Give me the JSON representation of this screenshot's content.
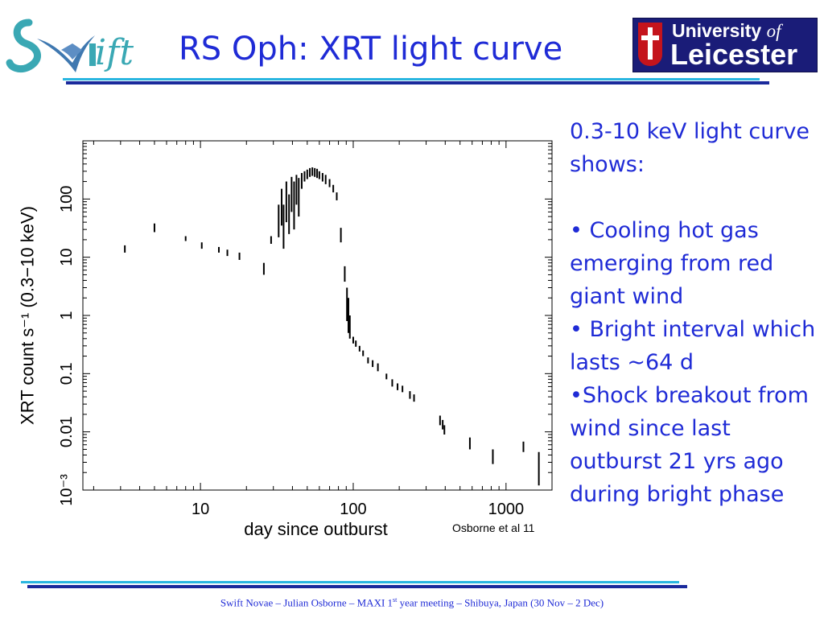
{
  "header": {
    "title": "RS Oph: XRT light curve",
    "swift_logo_text": "Swift",
    "university_logo": {
      "line1_word": "University",
      "line1_of": "of",
      "line2": "Leicester"
    }
  },
  "chart_data": {
    "type": "scatter",
    "title": "",
    "xlabel": "day since outburst",
    "ylabel": "XRT count s⁻¹ (0.3−10 keV)",
    "xscale": "log",
    "yscale": "log",
    "xlim": [
      1.7,
      2000
    ],
    "ylim": [
      0.001,
      1000
    ],
    "x_ticks": [
      {
        "value": 10,
        "label": "10"
      },
      {
        "value": 100,
        "label": "100"
      },
      {
        "value": 1000,
        "label": "1000"
      }
    ],
    "y_ticks": [
      {
        "value": 0.001,
        "label": "10⁻³"
      },
      {
        "value": 0.01,
        "label": "0.01"
      },
      {
        "value": 0.1,
        "label": "0.1"
      },
      {
        "value": 1,
        "label": "1"
      },
      {
        "value": 10,
        "label": "10"
      },
      {
        "value": 100,
        "label": "100"
      }
    ],
    "grid": false,
    "marker_color": "#000000",
    "series": [
      {
        "points": [
          {
            "x": 3.2,
            "y": 14,
            "ylo": 12,
            "yhi": 16
          },
          {
            "x": 5.0,
            "y": 32,
            "ylo": 27,
            "yhi": 38
          },
          {
            "x": 8.0,
            "y": 21,
            "ylo": 19,
            "yhi": 23
          },
          {
            "x": 10.2,
            "y": 16,
            "ylo": 14,
            "yhi": 18
          },
          {
            "x": 13.2,
            "y": 13.5,
            "ylo": 12,
            "yhi": 15
          },
          {
            "x": 15.0,
            "y": 12,
            "ylo": 10.5,
            "yhi": 13.5
          },
          {
            "x": 18.0,
            "y": 10.5,
            "ylo": 9,
            "yhi": 12
          },
          {
            "x": 26.0,
            "y": 6.5,
            "ylo": 5,
            "yhi": 8
          },
          {
            "x": 29.0,
            "y": 20,
            "ylo": 17,
            "yhi": 23
          },
          {
            "x": 32.5,
            "y": 50,
            "ylo": 22,
            "yhi": 80
          },
          {
            "x": 34.0,
            "y": 80,
            "ylo": 35,
            "yhi": 150
          },
          {
            "x": 35.0,
            "y": 40,
            "ylo": 14,
            "yhi": 80
          },
          {
            "x": 36.5,
            "y": 100,
            "ylo": 40,
            "yhi": 200
          },
          {
            "x": 38.0,
            "y": 60,
            "ylo": 25,
            "yhi": 120
          },
          {
            "x": 39.5,
            "y": 150,
            "ylo": 60,
            "yhi": 240
          },
          {
            "x": 41.0,
            "y": 90,
            "ylo": 30,
            "yhi": 200
          },
          {
            "x": 42.5,
            "y": 180,
            "ylo": 80,
            "yhi": 260
          },
          {
            "x": 44.0,
            "y": 120,
            "ylo": 50,
            "yhi": 230
          },
          {
            "x": 46.0,
            "y": 220,
            "ylo": 150,
            "yhi": 280
          },
          {
            "x": 48.0,
            "y": 250,
            "ylo": 200,
            "yhi": 300
          },
          {
            "x": 50.0,
            "y": 270,
            "ylo": 220,
            "yhi": 320
          },
          {
            "x": 52.0,
            "y": 290,
            "ylo": 240,
            "yhi": 340
          },
          {
            "x": 54.0,
            "y": 300,
            "ylo": 250,
            "yhi": 350
          },
          {
            "x": 56.0,
            "y": 290,
            "ylo": 240,
            "yhi": 340
          },
          {
            "x": 58.0,
            "y": 280,
            "ylo": 230,
            "yhi": 330
          },
          {
            "x": 60.0,
            "y": 260,
            "ylo": 220,
            "yhi": 300
          },
          {
            "x": 63.0,
            "y": 240,
            "ylo": 200,
            "yhi": 280
          },
          {
            "x": 66.0,
            "y": 220,
            "ylo": 180,
            "yhi": 260
          },
          {
            "x": 70.0,
            "y": 190,
            "ylo": 160,
            "yhi": 220
          },
          {
            "x": 74.0,
            "y": 150,
            "ylo": 130,
            "yhi": 175
          },
          {
            "x": 78.0,
            "y": 110,
            "ylo": 95,
            "yhi": 130
          },
          {
            "x": 83.0,
            "y": 25,
            "ylo": 18,
            "yhi": 32
          },
          {
            "x": 88.0,
            "y": 5,
            "ylo": 3.8,
            "yhi": 7
          },
          {
            "x": 91.0,
            "y": 1.5,
            "ylo": 0.8,
            "yhi": 3
          },
          {
            "x": 93.0,
            "y": 0.8,
            "ylo": 0.5,
            "yhi": 2
          },
          {
            "x": 95.0,
            "y": 0.6,
            "ylo": 0.4,
            "yhi": 1
          },
          {
            "x": 100.0,
            "y": 0.38,
            "ylo": 0.33,
            "yhi": 0.43
          },
          {
            "x": 104.0,
            "y": 0.33,
            "ylo": 0.29,
            "yhi": 0.37
          },
          {
            "x": 110.0,
            "y": 0.27,
            "ylo": 0.24,
            "yhi": 0.3
          },
          {
            "x": 116.0,
            "y": 0.22,
            "ylo": 0.2,
            "yhi": 0.25
          },
          {
            "x": 125.0,
            "y": 0.17,
            "ylo": 0.15,
            "yhi": 0.19
          },
          {
            "x": 134.0,
            "y": 0.15,
            "ylo": 0.13,
            "yhi": 0.17
          },
          {
            "x": 145.0,
            "y": 0.13,
            "ylo": 0.11,
            "yhi": 0.15
          },
          {
            "x": 165.0,
            "y": 0.09,
            "ylo": 0.08,
            "yhi": 0.1
          },
          {
            "x": 180.0,
            "y": 0.07,
            "ylo": 0.06,
            "yhi": 0.08
          },
          {
            "x": 195.0,
            "y": 0.06,
            "ylo": 0.052,
            "yhi": 0.068
          },
          {
            "x": 210.0,
            "y": 0.055,
            "ylo": 0.048,
            "yhi": 0.062
          },
          {
            "x": 235.0,
            "y": 0.043,
            "ylo": 0.037,
            "yhi": 0.05
          },
          {
            "x": 250.0,
            "y": 0.038,
            "ylo": 0.033,
            "yhi": 0.044
          },
          {
            "x": 370.0,
            "y": 0.016,
            "ylo": 0.013,
            "yhi": 0.019
          },
          {
            "x": 385.0,
            "y": 0.013,
            "ylo": 0.011,
            "yhi": 0.016
          },
          {
            "x": 395.0,
            "y": 0.011,
            "ylo": 0.009,
            "yhi": 0.013
          },
          {
            "x": 580.0,
            "y": 0.0065,
            "ylo": 0.005,
            "yhi": 0.008
          },
          {
            "x": 820.0,
            "y": 0.0038,
            "ylo": 0.0028,
            "yhi": 0.005
          },
          {
            "x": 1300.0,
            "y": 0.0055,
            "ylo": 0.0045,
            "yhi": 0.0068
          },
          {
            "x": 1640.0,
            "y": 0.0025,
            "ylo": 0.0012,
            "yhi": 0.0045
          }
        ]
      }
    ]
  },
  "credit": "Osborne et al 11",
  "bullets": {
    "intro": "0.3-10 keV light curve shows:",
    "items": [
      "• Cooling hot gas emerging from red giant wind",
      "• Bright interval which  lasts ~64 d",
      "•Shock breakout from wind since last outburst 21 yrs ago during bright phase"
    ]
  },
  "footer": {
    "part1": "Swift Novae – Julian Osborne – MAXI 1",
    "sup": "st",
    "part2": " year meeting – Shibuya, Japan (30 Nov – 2 Dec)"
  },
  "colors": {
    "title_blue": "#1f2bd6",
    "rule_navy": "#1a2a9c",
    "rule_cyan": "#29b6e0",
    "swift_teal": "#3aa8b4",
    "leicester_navy": "#1a1c78",
    "leicester_red": "#c4141c"
  }
}
